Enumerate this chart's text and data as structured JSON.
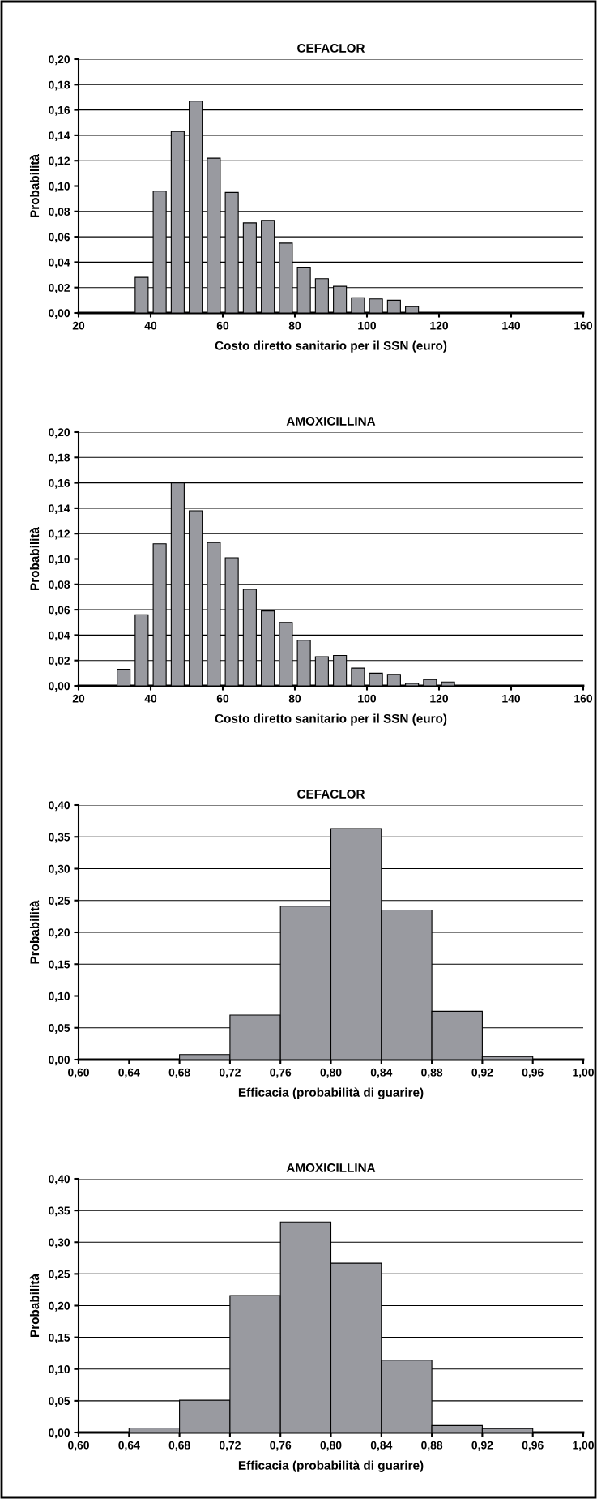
{
  "chart_data": [
    {
      "type": "bar",
      "title": "CEFACLOR",
      "xlabel": "Costo diretto sanitario per il SSN (euro)",
      "ylabel": "Probabilità",
      "x": [
        37.5,
        42.5,
        47.5,
        52.5,
        57.5,
        62.5,
        67.5,
        72.5,
        77.5,
        82.5,
        87.5,
        92.5,
        97.5,
        102.5,
        107.5,
        112.5
      ],
      "values": [
        0.028,
        0.096,
        0.143,
        0.167,
        0.122,
        0.095,
        0.071,
        0.073,
        0.055,
        0.036,
        0.027,
        0.021,
        0.012,
        0.011,
        0.01,
        0.005
      ],
      "color": "#999aa0",
      "xlim": [
        20,
        160
      ],
      "xticks": [
        20,
        40,
        60,
        80,
        100,
        120,
        140,
        160
      ],
      "ylim": [
        0,
        0.2
      ],
      "yticks": [
        {
          "value": 0,
          "label": "0,00"
        },
        {
          "value": 0.02,
          "label": "0,02"
        },
        {
          "value": 0.04,
          "label": "0,04"
        },
        {
          "value": 0.06,
          "label": "0,06"
        },
        {
          "value": 0.08,
          "label": "0,08"
        },
        {
          "value": 0.1,
          "label": "0,10"
        },
        {
          "value": 0.12,
          "label": "0,12"
        },
        {
          "value": 0.14,
          "label": "0,14"
        },
        {
          "value": 0.16,
          "label": "0,16"
        },
        {
          "value": 0.18,
          "label": "0,18"
        },
        {
          "value": 0.2,
          "label": "0,20"
        }
      ],
      "grid": "y"
    },
    {
      "type": "bar",
      "title": "AMOXICILLINA",
      "xlabel": "Costo diretto sanitario per il SSN (euro)",
      "ylabel": "Probabilità",
      "x": [
        32.5,
        37.5,
        42.5,
        47.5,
        52.5,
        57.5,
        62.5,
        67.5,
        72.5,
        77.5,
        82.5,
        87.5,
        92.5,
        97.5,
        102.5,
        107.5,
        112.5,
        117.5,
        122.5
      ],
      "values": [
        0.013,
        0.056,
        0.112,
        0.16,
        0.138,
        0.113,
        0.101,
        0.076,
        0.059,
        0.05,
        0.036,
        0.023,
        0.024,
        0.014,
        0.01,
        0.009,
        0.002,
        0.005,
        0.003
      ],
      "color": "#999aa0",
      "xlim": [
        20,
        160
      ],
      "xticks": [
        20,
        40,
        60,
        80,
        100,
        120,
        140,
        160
      ],
      "ylim": [
        0,
        0.2
      ],
      "yticks": [
        {
          "value": 0,
          "label": "0,00"
        },
        {
          "value": 0.02,
          "label": "0,02"
        },
        {
          "value": 0.04,
          "label": "0,04"
        },
        {
          "value": 0.06,
          "label": "0,06"
        },
        {
          "value": 0.08,
          "label": "0,08"
        },
        {
          "value": 0.1,
          "label": "0,10"
        },
        {
          "value": 0.12,
          "label": "0,12"
        },
        {
          "value": 0.14,
          "label": "0,14"
        },
        {
          "value": 0.16,
          "label": "0,16"
        },
        {
          "value": 0.18,
          "label": "0,18"
        },
        {
          "value": 0.2,
          "label": "0,20"
        }
      ],
      "grid": "y"
    },
    {
      "type": "histogram",
      "title": "CEFACLOR",
      "xlabel": "Efficacia (probabilità di guarire)",
      "ylabel": "Probabilità",
      "bins": [
        0.68,
        0.72,
        0.76,
        0.8,
        0.84,
        0.88,
        0.92,
        0.96
      ],
      "values": [
        0.008,
        0.07,
        0.241,
        0.363,
        0.235,
        0.076,
        0.005
      ],
      "color": "#999aa0",
      "xlim": [
        0.6,
        1.0
      ],
      "xticks": [
        {
          "value": 0.6,
          "label": "0,60"
        },
        {
          "value": 0.64,
          "label": "0,64"
        },
        {
          "value": 0.68,
          "label": "0,68"
        },
        {
          "value": 0.72,
          "label": "0,72"
        },
        {
          "value": 0.76,
          "label": "0,76"
        },
        {
          "value": 0.8,
          "label": "0,80"
        },
        {
          "value": 0.84,
          "label": "0,84"
        },
        {
          "value": 0.88,
          "label": "0,88"
        },
        {
          "value": 0.92,
          "label": "0,92"
        },
        {
          "value": 0.96,
          "label": "0,96"
        },
        {
          "value": 1.0,
          "label": "1,00"
        }
      ],
      "ylim": [
        0,
        0.4
      ],
      "yticks": [
        {
          "value": 0,
          "label": "0,00"
        },
        {
          "value": 0.05,
          "label": "0,05"
        },
        {
          "value": 0.1,
          "label": "0,10"
        },
        {
          "value": 0.15,
          "label": "0,15"
        },
        {
          "value": 0.2,
          "label": "0,20"
        },
        {
          "value": 0.25,
          "label": "0,25"
        },
        {
          "value": 0.3,
          "label": "0,30"
        },
        {
          "value": 0.35,
          "label": "0,35"
        },
        {
          "value": 0.4,
          "label": "0,40"
        }
      ],
      "grid": "y"
    },
    {
      "type": "histogram",
      "title": "AMOXICILLINA",
      "xlabel": "Efficacia (probabilità di guarire)",
      "ylabel": "Probabilità",
      "bins": [
        0.64,
        0.68,
        0.72,
        0.76,
        0.8,
        0.84,
        0.88,
        0.92,
        0.96
      ],
      "values": [
        0.007,
        0.051,
        0.216,
        0.332,
        0.267,
        0.114,
        0.011,
        0.006
      ],
      "color": "#999aa0",
      "xlim": [
        0.6,
        1.0
      ],
      "xticks": [
        {
          "value": 0.6,
          "label": "0,60"
        },
        {
          "value": 0.64,
          "label": "0,64"
        },
        {
          "value": 0.68,
          "label": "0,68"
        },
        {
          "value": 0.72,
          "label": "0,72"
        },
        {
          "value": 0.76,
          "label": "0,76"
        },
        {
          "value": 0.8,
          "label": "0,80"
        },
        {
          "value": 0.84,
          "label": "0,84"
        },
        {
          "value": 0.88,
          "label": "0,88"
        },
        {
          "value": 0.92,
          "label": "0,92"
        },
        {
          "value": 0.96,
          "label": "0,96"
        },
        {
          "value": 1.0,
          "label": "1,00"
        }
      ],
      "ylim": [
        0,
        0.4
      ],
      "yticks": [
        {
          "value": 0,
          "label": "0,00"
        },
        {
          "value": 0.05,
          "label": "0,05"
        },
        {
          "value": 0.1,
          "label": "0,10"
        },
        {
          "value": 0.15,
          "label": "0,15"
        },
        {
          "value": 0.2,
          "label": "0,20"
        },
        {
          "value": 0.25,
          "label": "0,25"
        },
        {
          "value": 0.3,
          "label": "0,30"
        },
        {
          "value": 0.35,
          "label": "0,35"
        },
        {
          "value": 0.4,
          "label": "0,40"
        }
      ],
      "grid": "y"
    }
  ]
}
